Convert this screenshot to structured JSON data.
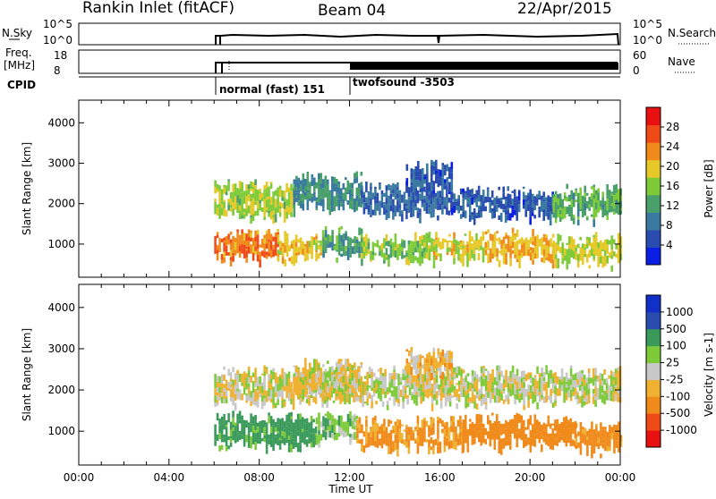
{
  "header": {
    "title": "Rankin Inlet (fitACF)",
    "beam": "Beam 04",
    "date": "22/Apr/2015"
  },
  "panels": {
    "nsky": {
      "label": "N.Sky",
      "left_ticks": [
        "10^5",
        "10^0"
      ],
      "right_ticks": [
        "10^5",
        "10^0"
      ],
      "right_label": "N.Search"
    },
    "freq": {
      "label_line1": "Freq.",
      "label_line2": "[MHz]",
      "left_ticks": [
        "18",
        "8"
      ],
      "right_ticks": [
        "60",
        "0"
      ],
      "right_label": "Nave"
    },
    "cpid": {
      "label": "CPID",
      "segments": [
        {
          "name": "normal (fast) 151",
          "start_hour": 6.0
        },
        {
          "name": "twofsound -3503",
          "start_hour": 12.0
        }
      ]
    }
  },
  "colors": {
    "power": [
      "#0a1ee6",
      "#2a4cb0",
      "#3a7aa0",
      "#49a06a",
      "#7ecb3a",
      "#e6c828",
      "#f08a1a",
      "#f04a18",
      "#e81010"
    ],
    "velocity": [
      "#e81010",
      "#f04a18",
      "#f08a1a",
      "#f0b030",
      "#c8c8c8",
      "#7ecb3a",
      "#3a9a5a",
      "#2a4cb0",
      "#1030c8"
    ]
  },
  "chart_data": [
    {
      "type": "heatmap",
      "name": "power",
      "xlabel": "Time UT",
      "ylabel": "Slant Range [km]",
      "xlim": [
        0,
        24
      ],
      "ylim": [
        180,
        4560
      ],
      "x_ticks": [
        "00:00",
        "04:00",
        "08:00",
        "12:00",
        "16:00",
        "20:00",
        "00:00"
      ],
      "y_ticks": [
        1000,
        2000,
        3000,
        4000
      ],
      "colorbar": {
        "label": "Power [dB]",
        "ticks": [
          "28",
          "24",
          "20",
          "16",
          "12",
          "8",
          "4"
        ]
      },
      "regions": [
        {
          "x": [
            6.0,
            8.8
          ],
          "y": [
            700,
            1250
          ],
          "value": 27
        },
        {
          "x": [
            8.8,
            10.8
          ],
          "y": [
            650,
            1200
          ],
          "value": 22
        },
        {
          "x": [
            10.8,
            12.5
          ],
          "y": [
            800,
            1300
          ],
          "value": 14
        },
        {
          "x": [
            12.5,
            15.5
          ],
          "y": [
            650,
            1150
          ],
          "value": 18
        },
        {
          "x": [
            15.5,
            18.0
          ],
          "y": [
            700,
            1200
          ],
          "value": 21
        },
        {
          "x": [
            18.0,
            21.0
          ],
          "y": [
            700,
            1250
          ],
          "value": 24
        },
        {
          "x": [
            21.0,
            24.0
          ],
          "y": [
            600,
            1150
          ],
          "value": 20
        },
        {
          "x": [
            6.0,
            9.5
          ],
          "y": [
            1750,
            2450
          ],
          "value": 19
        },
        {
          "x": [
            9.5,
            12.5
          ],
          "y": [
            1950,
            2650
          ],
          "value": 12
        },
        {
          "x": [
            12.5,
            16.5
          ],
          "y": [
            1800,
            2400
          ],
          "value": 8
        },
        {
          "x": [
            16.5,
            21.0
          ],
          "y": [
            1750,
            2300
          ],
          "value": 7
        },
        {
          "x": [
            21.0,
            24.0
          ],
          "y": [
            1700,
            2350
          ],
          "value": 15
        },
        {
          "x": [
            14.5,
            16.5
          ],
          "y": [
            2400,
            2950
          ],
          "value": 7
        }
      ]
    },
    {
      "type": "heatmap",
      "name": "velocity",
      "xlabel": "Time UT",
      "ylabel": "Slant Range [km]",
      "xlim": [
        0,
        24
      ],
      "ylim": [
        180,
        4560
      ],
      "x_ticks": [
        "00:00",
        "04:00",
        "08:00",
        "12:00",
        "16:00",
        "20:00",
        "00:00"
      ],
      "y_ticks": [
        1000,
        2000,
        3000,
        4000
      ],
      "colorbar": {
        "label": "Velocity [m s-1]",
        "ticks": [
          "1000",
          "500",
          "100",
          "25",
          "-25",
          "-100",
          "-500",
          "-1000"
        ]
      },
      "regions": [
        {
          "x": [
            6.0,
            10.5
          ],
          "y": [
            700,
            1350
          ],
          "value": 150
        },
        {
          "x": [
            10.5,
            12.3
          ],
          "y": [
            850,
            1350
          ],
          "value": 60
        },
        {
          "x": [
            12.3,
            17.0
          ],
          "y": [
            650,
            1250
          ],
          "value": -120
        },
        {
          "x": [
            17.0,
            22.0
          ],
          "y": [
            700,
            1300
          ],
          "value": -300
        },
        {
          "x": [
            22.0,
            24.0
          ],
          "y": [
            600,
            1100
          ],
          "value": -150
        },
        {
          "x": [
            6.0,
            24.0
          ],
          "y": [
            1750,
            2450
          ],
          "value": 0
        },
        {
          "x": [
            9.5,
            12.5
          ],
          "y": [
            1950,
            2650
          ],
          "value": -20
        },
        {
          "x": [
            14.5,
            16.5
          ],
          "y": [
            2400,
            2900
          ],
          "value": -60
        }
      ]
    }
  ]
}
